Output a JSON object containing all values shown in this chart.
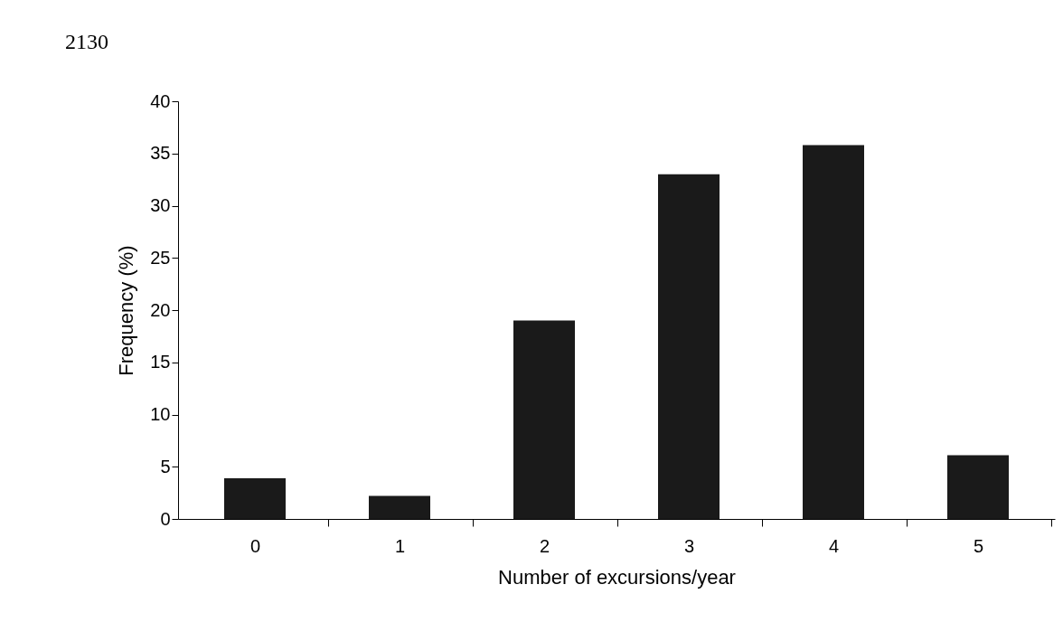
{
  "chart_data": {
    "type": "bar",
    "xlabel": "Number of excursions/year",
    "ylabel": "Frequency (%)",
    "annotations": [
      "2130"
    ],
    "categories": [
      "0",
      "1",
      "2",
      "3",
      "4",
      "5"
    ],
    "values": [
      3.9,
      2.2,
      19,
      33,
      35.8,
      6.1
    ],
    "color": "#1a1a1a",
    "ylim": [
      0,
      40
    ],
    "yticks": [
      0,
      5,
      10,
      15,
      20,
      25,
      30,
      35,
      40
    ],
    "grid": false
  }
}
